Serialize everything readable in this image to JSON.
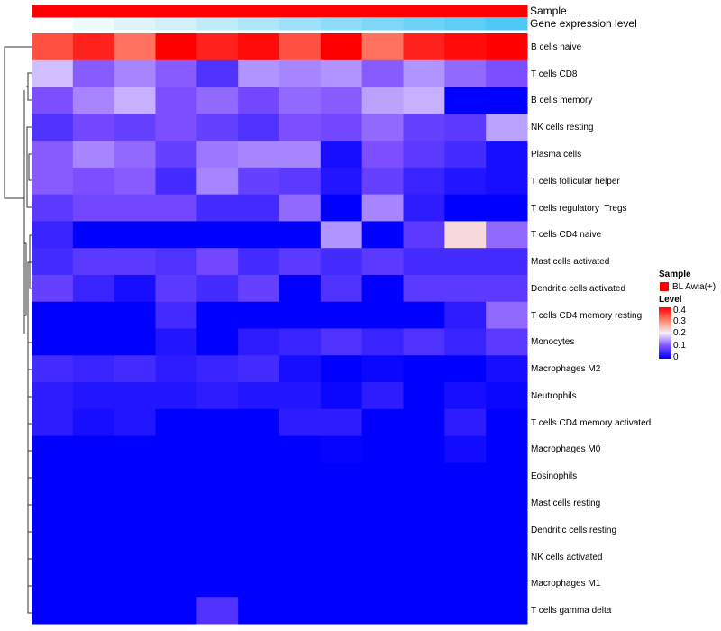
{
  "chart_data": {
    "type": "heatmap",
    "title": "",
    "annotations": {
      "sample": {
        "label": "Sample",
        "color": "#FF0000",
        "legend_title": "Sample",
        "legend_entry": "BL Awia(+)"
      },
      "gene_expression": {
        "label": "Gene expression level",
        "low_color": "#FFFFFF",
        "high_color": "#4FC8F5",
        "values": [
          0,
          1,
          2,
          3,
          4,
          5,
          6,
          7,
          8,
          9,
          10,
          11
        ]
      }
    },
    "color_scale": {
      "title": "Level",
      "ticks": [
        "0.4",
        "0.3",
        "0.2",
        "0.1",
        "0"
      ],
      "range": [
        0,
        0.45
      ],
      "low": "#0000FF",
      "mid": "#FFFFFF",
      "high": "#FF0000"
    },
    "columns": 12,
    "rows": [
      {
        "label": "B cells naive",
        "values": [
          0.38,
          0.42,
          0.35,
          0.45,
          0.42,
          0.44,
          0.38,
          0.45,
          0.35,
          0.42,
          0.44,
          0.45
        ]
      },
      {
        "label": "T cells CD8",
        "values": [
          0.19,
          0.12,
          0.15,
          0.12,
          0.07,
          0.16,
          0.15,
          0.16,
          0.12,
          0.16,
          0.13,
          0.11
        ]
      },
      {
        "label": "B cells memory",
        "values": [
          0.11,
          0.15,
          0.18,
          0.11,
          0.13,
          0.1,
          0.13,
          0.12,
          0.17,
          0.18,
          0,
          0
        ]
      },
      {
        "label": "NK cells resting",
        "values": [
          0.07,
          0.1,
          0.09,
          0.11,
          0.09,
          0.07,
          0.11,
          0.1,
          0.13,
          0.09,
          0.08,
          0.17
        ]
      },
      {
        "label": "Plasma cells",
        "values": [
          0.12,
          0.15,
          0.13,
          0.09,
          0.14,
          0.15,
          0.15,
          0.02,
          0.11,
          0.08,
          0.06,
          0.02
        ]
      },
      {
        "label": "T cells follicular helper",
        "values": [
          0.12,
          0.11,
          0.12,
          0.06,
          0.15,
          0.09,
          0.08,
          0.03,
          0.09,
          0.05,
          0.03,
          0.02
        ]
      },
      {
        "label": "T cells regulatory  Tregs",
        "values": [
          0.08,
          0.1,
          0.1,
          0.1,
          0.06,
          0.06,
          0.13,
          0,
          0.15,
          0.04,
          0,
          0
        ]
      },
      {
        "label": "T cells CD4 naive",
        "values": [
          0.05,
          0,
          0,
          0,
          0,
          0,
          0,
          0.16,
          0,
          0.08,
          0.25,
          0.13
        ]
      },
      {
        "label": "Mast cells activated",
        "values": [
          0.06,
          0.08,
          0.08,
          0.07,
          0.1,
          0.06,
          0.08,
          0.06,
          0.08,
          0.06,
          0.06,
          0.06
        ]
      },
      {
        "label": "Dendritic cells activated",
        "values": [
          0.09,
          0.05,
          0.02,
          0.08,
          0.06,
          0.09,
          0,
          0.07,
          0,
          0.08,
          0.08,
          0.08
        ]
      },
      {
        "label": "T cells CD4 memory resting",
        "values": [
          0,
          0,
          0,
          0.06,
          0,
          0,
          0,
          0,
          0,
          0,
          0.04,
          0.13
        ]
      },
      {
        "label": "Monocytes",
        "values": [
          0,
          0,
          0,
          0.03,
          0,
          0.04,
          0.05,
          0.07,
          0.05,
          0.07,
          0.05,
          0.08
        ]
      },
      {
        "label": "Macrophages M2",
        "values": [
          0.06,
          0.05,
          0.06,
          0.04,
          0.05,
          0.06,
          0.02,
          0,
          0.01,
          0,
          0,
          0.02
        ]
      },
      {
        "label": "Neutrophils",
        "values": [
          0.04,
          0.03,
          0.03,
          0.03,
          0.04,
          0.03,
          0.03,
          0.01,
          0.04,
          0,
          0.02,
          0.01
        ]
      },
      {
        "label": "T cells CD4 memory activated",
        "values": [
          0.04,
          0.02,
          0.03,
          0,
          0,
          0,
          0.04,
          0.04,
          0,
          0,
          0.04,
          0
        ]
      },
      {
        "label": "Macrophages M0",
        "values": [
          0,
          0,
          0,
          0,
          0,
          0,
          0,
          0.005,
          0,
          0,
          0.015,
          0
        ]
      },
      {
        "label": "Eosinophils",
        "values": [
          0,
          0,
          0,
          0,
          0,
          0,
          0,
          0,
          0,
          0,
          0,
          0
        ]
      },
      {
        "label": "Mast cells resting",
        "values": [
          0,
          0,
          0,
          0,
          0,
          0,
          0,
          0,
          0,
          0,
          0,
          0
        ]
      },
      {
        "label": "Dendritic cells resting",
        "values": [
          0,
          0,
          0,
          0,
          0,
          0,
          0,
          0,
          0,
          0,
          0,
          0
        ]
      },
      {
        "label": "NK cells activated",
        "values": [
          0,
          0,
          0,
          0,
          0,
          0,
          0,
          0,
          0,
          0,
          0,
          0
        ]
      },
      {
        "label": "Macrophages M1",
        "values": [
          0,
          0,
          0,
          0,
          0,
          0,
          0,
          0,
          0,
          0,
          0,
          0
        ]
      },
      {
        "label": "T cells gamma delta",
        "values": [
          0,
          0,
          0,
          0,
          0.07,
          0,
          0,
          0,
          0,
          0,
          0,
          0
        ]
      }
    ]
  }
}
